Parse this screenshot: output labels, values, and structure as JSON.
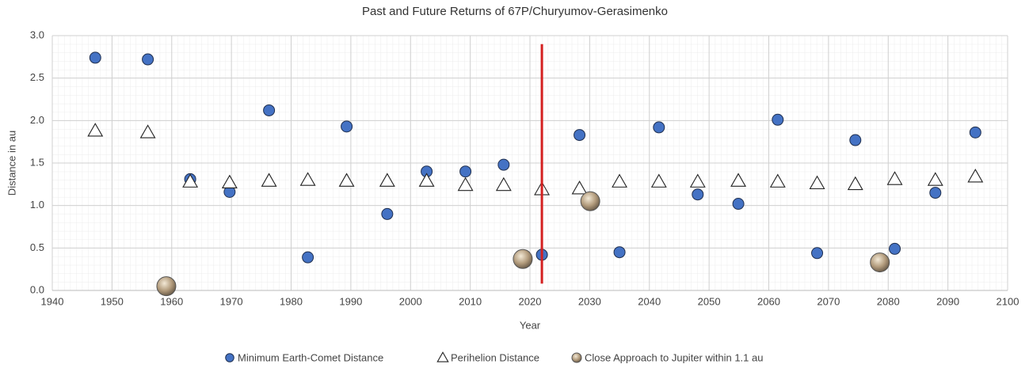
{
  "chart_data": {
    "type": "scatter",
    "title": "Past and Future Returns of 67P/Churyumov-Gerasimenko",
    "x_label": "Year",
    "y_label": "Distance in au",
    "xlim": [
      1940,
      2100
    ],
    "xticks": [
      1940,
      1950,
      1960,
      1970,
      1980,
      1990,
      2000,
      2010,
      2020,
      2030,
      2040,
      2050,
      2060,
      2070,
      2080,
      2090,
      2100
    ],
    "ylim": [
      0,
      3
    ],
    "yticks": [
      {
        "value": 0,
        "label": "0.0"
      },
      {
        "value": 0.5,
        "label": "0.5"
      },
      {
        "value": 1,
        "label": "1.0"
      },
      {
        "value": 1.5,
        "label": "1.5"
      },
      {
        "value": 2,
        "label": "2.0"
      },
      {
        "value": 2.5,
        "label": "2.5"
      },
      {
        "value": 3,
        "label": "3.0"
      }
    ],
    "grid": true,
    "legend": "bottom",
    "series": [
      {
        "name": "Minimum Earth-Comet Distance",
        "color": "#4472c4",
        "marker": "circle",
        "x": [
          1947.2,
          1956.0,
          1963.1,
          1969.7,
          1976.3,
          1982.8,
          1989.3,
          1996.1,
          2002.7,
          2009.2,
          2015.6,
          2022.0,
          2028.3,
          2035.0,
          2041.6,
          2048.1,
          2054.9,
          2061.5,
          2068.1,
          2074.5,
          2081.1,
          2087.9,
          2094.6
        ],
        "values": [
          2.74,
          2.72,
          1.31,
          1.16,
          2.12,
          0.39,
          1.93,
          0.9,
          1.4,
          1.4,
          1.48,
          0.42,
          1.83,
          0.45,
          1.92,
          1.13,
          1.02,
          2.01,
          0.44,
          1.77,
          0.49,
          1.15,
          1.86
        ]
      },
      {
        "name": "Perihelion Distance",
        "color": "#ffffff",
        "marker": "triangle",
        "x": [
          1947.2,
          1956.0,
          1963.1,
          1969.7,
          1976.3,
          1982.8,
          1989.3,
          1996.1,
          2002.7,
          2009.2,
          2015.6,
          2022.0,
          2028.3,
          2035.0,
          2041.6,
          2048.1,
          2054.9,
          2061.5,
          2068.1,
          2074.5,
          2081.1,
          2087.9,
          2094.6
        ],
        "values": [
          1.88,
          1.86,
          1.28,
          1.27,
          1.29,
          1.3,
          1.29,
          1.29,
          1.29,
          1.24,
          1.24,
          1.19,
          1.2,
          1.28,
          1.28,
          1.28,
          1.29,
          1.28,
          1.26,
          1.25,
          1.31,
          1.3,
          1.34
        ]
      },
      {
        "name": "Close Approach to Jupiter within 1.1 au",
        "color": "#b29b7c",
        "marker": "planet",
        "x": [
          1959.1,
          2018.8,
          2030.1,
          2078.6
        ],
        "values": [
          0.05,
          0.37,
          1.05,
          0.33
        ]
      }
    ],
    "vertical_line": {
      "x": 2022,
      "ymin": 0.08,
      "ymax": 2.9,
      "color": "#d42020"
    }
  }
}
